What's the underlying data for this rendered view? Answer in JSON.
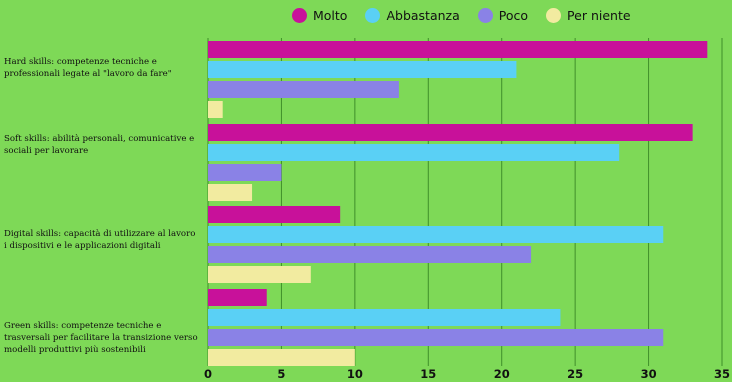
{
  "chart_data": {
    "type": "bar",
    "orientation": "horizontal",
    "categories": [
      "Hard skills: competenze tecniche e professionali legate al \"lavoro da fare\"",
      "Soft skills: abilità personali, comunicative e sociali per lavorare",
      "Digital skills: capacità di utilizzare al lavoro i dispositivi e le applicazioni digitali",
      "Green skills: competenze tecniche e trasversali per facilitare la transizione verso modelli produttivi più sostenibili"
    ],
    "series": [
      {
        "name": "Molto",
        "color": "#c8119a",
        "values": [
          34,
          33,
          9,
          4
        ]
      },
      {
        "name": "Abbastanza",
        "color": "#5ad0f5",
        "values": [
          21,
          28,
          31,
          24
        ]
      },
      {
        "name": "Poco",
        "color": "#8a82e6",
        "values": [
          13,
          5,
          22,
          31
        ]
      },
      {
        "name": "Per niente",
        "color": "#f2eba0",
        "values": [
          1,
          3,
          7,
          10
        ]
      }
    ],
    "x_ticks": [
      "0",
      "5",
      "10",
      "15",
      "20",
      "25",
      "30",
      "35"
    ],
    "xlim": [
      0,
      35
    ],
    "grid": true,
    "legend_position": "top"
  }
}
